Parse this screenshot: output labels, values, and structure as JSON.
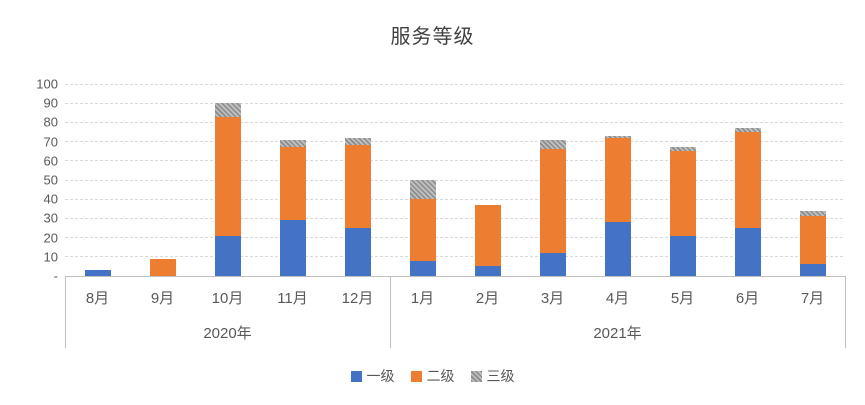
{
  "chart_data": {
    "type": "bar",
    "stacked": true,
    "title": "服务等级",
    "categories": [
      "8月",
      "9月",
      "10月",
      "11月",
      "12月",
      "1月",
      "2月",
      "3月",
      "4月",
      "5月",
      "6月",
      "7月"
    ],
    "year_groups": [
      {
        "label": "2020年",
        "start": 0,
        "end": 4
      },
      {
        "label": "2021年",
        "start": 5,
        "end": 11
      }
    ],
    "series": [
      {
        "name": "一级",
        "color": "#4472c4",
        "pattern": "solid",
        "values": [
          3,
          0,
          21,
          29,
          25,
          8,
          5,
          12,
          28,
          21,
          25,
          6
        ]
      },
      {
        "name": "二级",
        "color": "#ed7d31",
        "pattern": "solid",
        "values": [
          0,
          9,
          62,
          38,
          43,
          32,
          32,
          54,
          44,
          44,
          50,
          25
        ]
      },
      {
        "name": "三级",
        "color": "#a5a5a5",
        "pattern": "hatch",
        "values": [
          0,
          0,
          7,
          4,
          4,
          10,
          0,
          5,
          1,
          2,
          2,
          3
        ]
      }
    ],
    "ylim": [
      0,
      100
    ],
    "ytick_interval": 10,
    "yzero_label": "-",
    "grid": true,
    "legend_position": "bottom"
  }
}
